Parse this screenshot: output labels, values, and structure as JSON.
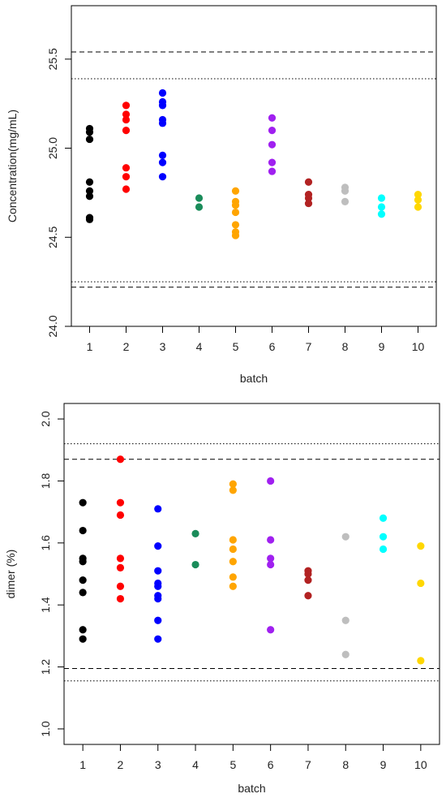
{
  "chart_data": [
    {
      "type": "scatter",
      "title": "",
      "xlabel": "batch",
      "ylabel": "Concentration(mg/mL)",
      "xlim": [
        0.5,
        10.5
      ],
      "ylim": [
        24.0,
        25.8
      ],
      "x_ticks": [
        1,
        2,
        3,
        4,
        5,
        6,
        7,
        8,
        9,
        10
      ],
      "x_tick_labels": [
        "1",
        "2",
        "3",
        "4",
        "5",
        "6",
        "7",
        "8",
        "9",
        "10"
      ],
      "y_ticks": [
        24.0,
        24.5,
        25.0,
        25.5
      ],
      "y_tick_labels": [
        "24.0",
        "24.5",
        "25.0",
        "25.5"
      ],
      "grid": false,
      "reference_lines": [
        {
          "y": 25.54,
          "style": "dashed"
        },
        {
          "y": 25.39,
          "style": "dotted"
        },
        {
          "y": 24.25,
          "style": "dotted"
        },
        {
          "y": 24.22,
          "style": "dashed"
        }
      ],
      "series": [
        {
          "color": "#000000",
          "x": 1,
          "values": [
            25.11,
            25.09,
            25.05,
            24.81,
            24.76,
            24.73,
            24.61,
            24.6
          ]
        },
        {
          "color": "#ff0000",
          "x": 2,
          "values": [
            25.24,
            25.19,
            25.16,
            25.1,
            24.89,
            24.84,
            24.77
          ]
        },
        {
          "color": "#0000ff",
          "x": 3,
          "values": [
            25.31,
            25.26,
            25.24,
            25.16,
            25.14,
            24.96,
            24.92,
            24.84
          ]
        },
        {
          "color": "#1a8c5a",
          "x": 4,
          "values": [
            24.72,
            24.67
          ]
        },
        {
          "color": "#ffa500",
          "x": 5,
          "values": [
            24.76,
            24.7,
            24.68,
            24.64,
            24.57,
            24.53,
            24.51
          ]
        },
        {
          "color": "#a020f0",
          "x": 6,
          "values": [
            25.17,
            25.1,
            25.02,
            24.92,
            24.87
          ]
        },
        {
          "color": "#b22222",
          "x": 7,
          "values": [
            24.81,
            24.74,
            24.72,
            24.69
          ]
        },
        {
          "color": "#bebebe",
          "x": 8,
          "values": [
            24.78,
            24.76,
            24.7
          ]
        },
        {
          "color": "#00ffff",
          "x": 9,
          "values": [
            24.72,
            24.67,
            24.63
          ]
        },
        {
          "color": "#ffd700",
          "x": 10,
          "values": [
            24.74,
            24.71,
            24.67
          ]
        }
      ]
    },
    {
      "type": "scatter",
      "title": "",
      "xlabel": "batch",
      "ylabel": "dimer (%)",
      "xlim": [
        0.5,
        10.5
      ],
      "ylim": [
        0.95,
        2.05
      ],
      "x_ticks": [
        1,
        2,
        3,
        4,
        5,
        6,
        7,
        8,
        9,
        10
      ],
      "x_tick_labels": [
        "1",
        "2",
        "3",
        "4",
        "5",
        "6",
        "7",
        "8",
        "9",
        "10"
      ],
      "y_ticks": [
        1.0,
        1.2,
        1.4,
        1.6,
        1.8,
        2.0
      ],
      "y_tick_labels": [
        "1.0",
        "1.2",
        "1.4",
        "1.6",
        "1.8",
        "2.0"
      ],
      "grid": false,
      "reference_lines": [
        {
          "y": 1.92,
          "style": "dotted"
        },
        {
          "y": 1.87,
          "style": "dashed"
        },
        {
          "y": 1.195,
          "style": "dashed"
        },
        {
          "y": 1.155,
          "style": "dotted"
        }
      ],
      "series": [
        {
          "color": "#000000",
          "x": 1,
          "values": [
            1.73,
            1.64,
            1.55,
            1.54,
            1.48,
            1.44,
            1.32,
            1.29
          ]
        },
        {
          "color": "#ff0000",
          "x": 2,
          "values": [
            1.87,
            1.73,
            1.69,
            1.55,
            1.52,
            1.46,
            1.42
          ]
        },
        {
          "color": "#0000ff",
          "x": 3,
          "values": [
            1.71,
            1.59,
            1.51,
            1.47,
            1.46,
            1.43,
            1.42,
            1.35,
            1.29
          ]
        },
        {
          "color": "#1a8c5a",
          "x": 4,
          "values": [
            1.63,
            1.53
          ]
        },
        {
          "color": "#ffa500",
          "x": 5,
          "values": [
            1.79,
            1.77,
            1.61,
            1.58,
            1.54,
            1.49,
            1.46
          ]
        },
        {
          "color": "#a020f0",
          "x": 6,
          "values": [
            1.8,
            1.61,
            1.55,
            1.53,
            1.32
          ]
        },
        {
          "color": "#b22222",
          "x": 7,
          "values": [
            1.51,
            1.5,
            1.48,
            1.43
          ]
        },
        {
          "color": "#bebebe",
          "x": 8,
          "values": [
            1.62,
            1.35,
            1.24
          ]
        },
        {
          "color": "#00ffff",
          "x": 9,
          "values": [
            1.68,
            1.62,
            1.58
          ]
        },
        {
          "color": "#ffd700",
          "x": 10,
          "values": [
            1.59,
            1.47,
            1.22
          ]
        }
      ]
    }
  ]
}
